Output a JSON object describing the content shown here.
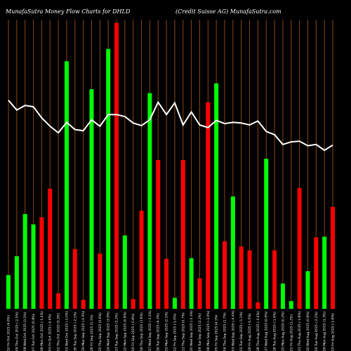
{
  "header": {
    "left": "MunafaSutra  Money Flow  Charts for DHLD",
    "right": "(Credit Suisse   AG) MunafaSutra.com"
  },
  "colors": {
    "background": "#000000",
    "up": "#00ff00",
    "down": "#ff0000",
    "grid": "#8b4513",
    "line": "#ffffff"
  },
  "chart_data": {
    "type": "bar",
    "title": "MunafaSutra  Money Flow  Charts for DHLD",
    "categories": [
      "10 Fri Oct 2025 (4.6%)",
      "09 Thu Oct 2025 (-2.5%)",
      "08 Wed Oct 2025 (3.2%)",
      "07 Tue Oct 2025 (0.8%)",
      "06 Mon Oct 2025 (-1.4%)",
      "03 Fri Oct 2025 (-4.4%)",
      "02 Thu Oct 2025 (0.3%)",
      "01 Wed Oct 2025 (-1.0%)",
      "30 Tue Sep 2025 (-2.1%)",
      "29 Mon Sep 2025 (-0.5%)",
      "26 Fri Sep 2025 (1.1%)",
      "25 Thu Sep 2025 (0.6%)",
      "24 Wed Sep 2025 (3.9%)",
      "23 Tue Sep 2025 (1.2%)",
      "22 Mon Sep 2025 (0.8%)",
      "19 Fri Sep 2025 (-0.6%)",
      "18 Thu Sep 2025 (1.6%)",
      "17 Wed Sep 2025 (-3.2%)",
      "16 Tue Sep 2025 (4.3%)",
      "15 Mon Sep 2025 (2.1%)",
      "12 Fri Sep 2025 (-1.0%)",
      "11 Thu Sep 2025 (0.7%)",
      "10 Wed Sep 2025 (-2.3%)",
      "09 Tue Sep 2025 (2.2%)",
      "08 Mon Sep 2025 (-3.0%)",
      "05 Fri Sep 2025 (4.1%)",
      "04 Thu Sep 2025 (1.7%)",
      "03 Wed Sep 2025 (-0.4%)",
      "02 Tue Sep 2025 (-1.1%)",
      "29 Fri Aug 2025 (-0.5%)",
      "28 Thu Aug 2025 (-3.4%)",
      "27 Wed Aug 2025 (0.9%)",
      "26 Tue Aug 2025 (-1.4%)",
      "25 Mon Aug 2025 (0.2%)",
      "22 Fri Aug 2025 (1.2%)",
      "21 Thu Aug 2025 (-1.8%)",
      "20 Wed Aug 2025 (0.6%)",
      "19 Tue Aug 2025 (-2.2%)",
      "18 Mon Aug 2025 (1.3%)",
      "15 Fri Aug 2025 (-1.6%)"
    ],
    "bar_direction": [
      "up",
      "up",
      "up",
      "up",
      "down",
      "down",
      "down",
      "up",
      "down",
      "down",
      "up",
      "down",
      "up",
      "down",
      "up",
      "down",
      "down",
      "up",
      "down",
      "down",
      "up",
      "down",
      "up",
      "down",
      "down",
      "up",
      "down",
      "up",
      "down",
      "down",
      "down",
      "up",
      "down",
      "up",
      "up",
      "down",
      "up",
      "down",
      "up",
      "down"
    ],
    "values": [
      52,
      81,
      146,
      130,
      141,
      185,
      24,
      381,
      92,
      14,
      338,
      85,
      400,
      440,
      113,
      15,
      151,
      332,
      229,
      77,
      17,
      229,
      78,
      47,
      318,
      347,
      104,
      173,
      96,
      90,
      10,
      231,
      90,
      39,
      12,
      186,
      58,
      110,
      111,
      157
    ],
    "line": [
      321,
      306,
      313,
      311,
      294,
      281,
      271,
      287,
      276,
      274,
      291,
      281,
      299,
      299,
      296,
      286,
      282,
      291,
      318,
      299,
      317,
      283,
      303,
      283,
      279,
      290,
      285,
      287,
      286,
      283,
      289,
      273,
      268,
      253,
      257,
      258,
      251,
      253,
      244,
      252
    ],
    "ylim": [
      0,
      445
    ],
    "xlabel": "",
    "ylabel": ""
  }
}
